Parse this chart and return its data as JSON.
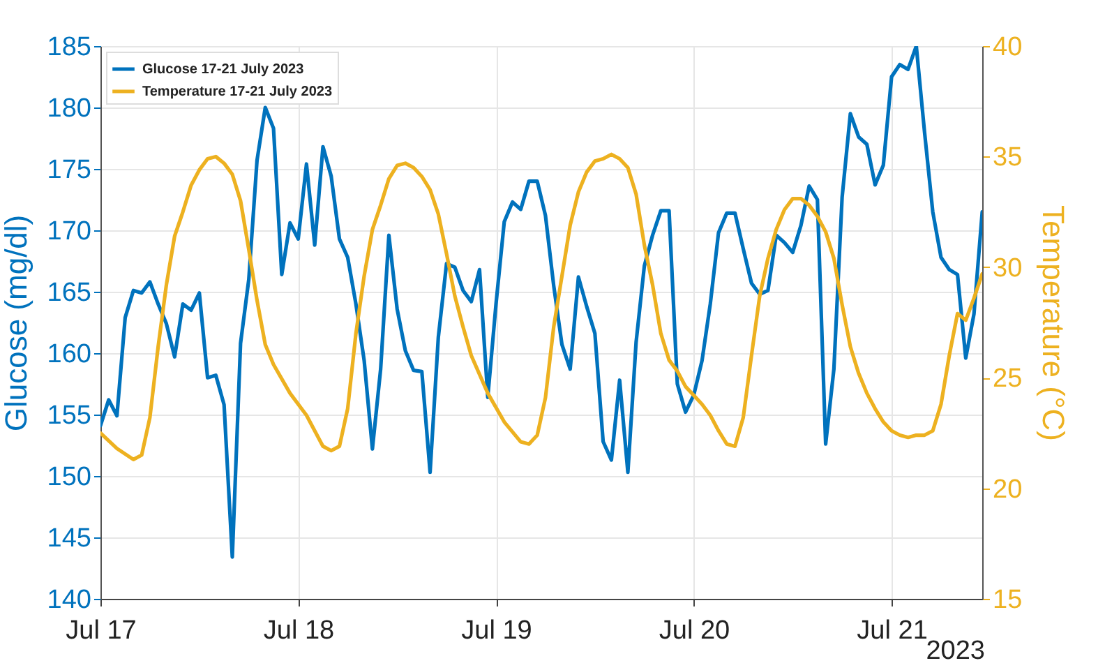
{
  "chart_data": {
    "type": "line",
    "xlabel": null,
    "ylabel": "Glucose (mg/dl)",
    "y2label": "Temperature (°C)",
    "x": [
      "2023-07-17T00:00",
      "2023-07-17T01:00",
      "2023-07-17T02:00",
      "2023-07-17T03:00",
      "2023-07-17T04:00",
      "2023-07-17T05:00",
      "2023-07-17T06:00",
      "2023-07-17T07:00",
      "2023-07-17T08:00",
      "2023-07-17T09:00",
      "2023-07-17T10:00",
      "2023-07-17T11:00",
      "2023-07-17T12:00",
      "2023-07-17T13:00",
      "2023-07-17T14:00",
      "2023-07-17T15:00",
      "2023-07-17T16:00",
      "2023-07-17T17:00",
      "2023-07-17T18:00",
      "2023-07-17T19:00",
      "2023-07-17T20:00",
      "2023-07-17T21:00",
      "2023-07-17T22:00",
      "2023-07-17T23:00",
      "2023-07-18T00:00",
      "2023-07-18T01:00",
      "2023-07-18T02:00",
      "2023-07-18T03:00",
      "2023-07-18T04:00",
      "2023-07-18T05:00",
      "2023-07-18T06:00",
      "2023-07-18T07:00",
      "2023-07-18T08:00",
      "2023-07-18T09:00",
      "2023-07-18T10:00",
      "2023-07-18T11:00",
      "2023-07-18T12:00",
      "2023-07-18T13:00",
      "2023-07-18T14:00",
      "2023-07-18T15:00",
      "2023-07-18T16:00",
      "2023-07-18T17:00",
      "2023-07-18T18:00",
      "2023-07-18T19:00",
      "2023-07-18T20:00",
      "2023-07-18T21:00",
      "2023-07-18T22:00",
      "2023-07-18T23:00",
      "2023-07-19T00:00",
      "2023-07-19T01:00",
      "2023-07-19T02:00",
      "2023-07-19T03:00",
      "2023-07-19T04:00",
      "2023-07-19T05:00",
      "2023-07-19T06:00",
      "2023-07-19T07:00",
      "2023-07-19T08:00",
      "2023-07-19T09:00",
      "2023-07-19T10:00",
      "2023-07-19T11:00",
      "2023-07-19T12:00",
      "2023-07-19T13:00",
      "2023-07-19T14:00",
      "2023-07-19T15:00",
      "2023-07-19T16:00",
      "2023-07-19T17:00",
      "2023-07-19T18:00",
      "2023-07-19T19:00",
      "2023-07-19T20:00",
      "2023-07-19T21:00",
      "2023-07-19T22:00",
      "2023-07-19T23:00",
      "2023-07-20T00:00",
      "2023-07-20T01:00",
      "2023-07-20T02:00",
      "2023-07-20T03:00",
      "2023-07-20T04:00",
      "2023-07-20T05:00",
      "2023-07-20T06:00",
      "2023-07-20T07:00",
      "2023-07-20T08:00",
      "2023-07-20T09:00",
      "2023-07-20T10:00",
      "2023-07-20T11:00",
      "2023-07-20T12:00",
      "2023-07-20T13:00",
      "2023-07-20T14:00",
      "2023-07-20T15:00",
      "2023-07-20T16:00",
      "2023-07-20T17:00",
      "2023-07-20T18:00",
      "2023-07-20T19:00",
      "2023-07-20T20:00",
      "2023-07-20T21:00",
      "2023-07-20T22:00",
      "2023-07-20T23:00",
      "2023-07-21T00:00",
      "2023-07-21T01:00",
      "2023-07-21T02:00",
      "2023-07-21T03:00",
      "2023-07-21T04:00",
      "2023-07-21T05:00",
      "2023-07-21T06:00",
      "2023-07-21T07:00",
      "2023-07-21T08:00",
      "2023-07-21T09:00",
      "2023-07-21T10:00",
      "2023-07-21T11:00"
    ],
    "series": [
      {
        "name": "Glucose 17-21 July 2023",
        "color": "#0072bd",
        "values": [
          154.1,
          156.2,
          154.9,
          162.9,
          165.1,
          164.9,
          165.8,
          164.0,
          162.4,
          159.7,
          164.0,
          163.5,
          164.9,
          158.0,
          158.2,
          155.8,
          143.4,
          160.8,
          166.0,
          175.7,
          180.0,
          178.3,
          166.4,
          170.6,
          169.3,
          175.4,
          168.8,
          176.8,
          174.4,
          169.3,
          167.8,
          164.0,
          159.4,
          152.2,
          158.7,
          169.6,
          163.6,
          160.2,
          158.6,
          158.5,
          150.3,
          161.3,
          167.3,
          167.0,
          165.1,
          164.2,
          166.8,
          156.4,
          164.0,
          170.7,
          172.3,
          171.7,
          174.0,
          174.0,
          171.2,
          165.5,
          160.7,
          158.7,
          166.2,
          163.8,
          161.6,
          152.8,
          151.3,
          157.8,
          150.3,
          160.9,
          167.1,
          169.6,
          171.6,
          171.6,
          157.5,
          155.2,
          156.6,
          159.4,
          164.0,
          169.8,
          171.4,
          171.4,
          168.5,
          165.7,
          164.8,
          165.1,
          169.6,
          169.0,
          168.2,
          170.4,
          173.6,
          172.5,
          152.6,
          158.7,
          172.7,
          179.5,
          177.6,
          177.0,
          173.7,
          175.3,
          182.5,
          183.5,
          183.1,
          185.0,
          178.0,
          171.5,
          167.8,
          166.8,
          166.4,
          159.6,
          163.2,
          171.5
        ]
      },
      {
        "name": "Temperature 17-21 July 2023",
        "color": "#edb120",
        "axis": "y2",
        "x": [
          "2023-07-17T00:00",
          "2023-07-17T02:00",
          "2023-07-17T04:00",
          "2023-07-17T05:00",
          "2023-07-17T06:00",
          "2023-07-17T07:00",
          "2023-07-17T08:00",
          "2023-07-17T09:00",
          "2023-07-17T10:00",
          "2023-07-17T11:00",
          "2023-07-17T12:00",
          "2023-07-17T13:00",
          "2023-07-17T14:00",
          "2023-07-17T15:00",
          "2023-07-17T16:00",
          "2023-07-17T17:00",
          "2023-07-17T18:00",
          "2023-07-17T19:00",
          "2023-07-17T20:00",
          "2023-07-17T21:00",
          "2023-07-17T23:00",
          "2023-07-18T01:00",
          "2023-07-18T03:00",
          "2023-07-18T04:00",
          "2023-07-18T05:00",
          "2023-07-18T06:00",
          "2023-07-18T07:00",
          "2023-07-18T08:00",
          "2023-07-18T09:00",
          "2023-07-18T10:00",
          "2023-07-18T11:00",
          "2023-07-18T12:00",
          "2023-07-18T13:00",
          "2023-07-18T14:00",
          "2023-07-18T15:00",
          "2023-07-18T16:00",
          "2023-07-18T17:00",
          "2023-07-18T18:00",
          "2023-07-18T19:00",
          "2023-07-18T20:00",
          "2023-07-18T21:00",
          "2023-07-18T23:00",
          "2023-07-19T01:00",
          "2023-07-19T03:00",
          "2023-07-19T04:00",
          "2023-07-19T05:00",
          "2023-07-19T06:00",
          "2023-07-19T07:00",
          "2023-07-19T08:00",
          "2023-07-19T09:00",
          "2023-07-19T10:00",
          "2023-07-19T11:00",
          "2023-07-19T12:00",
          "2023-07-19T13:00",
          "2023-07-19T14:00",
          "2023-07-19T15:00",
          "2023-07-19T16:00",
          "2023-07-19T17:00",
          "2023-07-19T18:00",
          "2023-07-19T19:00",
          "2023-07-19T20:00",
          "2023-07-19T21:00",
          "2023-07-19T22:00",
          "2023-07-19T23:00",
          "2023-07-20T00:00",
          "2023-07-20T01:00",
          "2023-07-20T02:00",
          "2023-07-20T03:00",
          "2023-07-20T04:00",
          "2023-07-20T05:00",
          "2023-07-20T06:00",
          "2023-07-20T07:00",
          "2023-07-20T08:00",
          "2023-07-20T09:00",
          "2023-07-20T10:00",
          "2023-07-20T11:00",
          "2023-07-20T12:00",
          "2023-07-20T13:00",
          "2023-07-20T14:00",
          "2023-07-20T15:00",
          "2023-07-20T16:00",
          "2023-07-20T17:00",
          "2023-07-20T18:00",
          "2023-07-20T19:00",
          "2023-07-20T20:00",
          "2023-07-20T21:00",
          "2023-07-20T22:00",
          "2023-07-20T23:00",
          "2023-07-21T00:00",
          "2023-07-21T01:00",
          "2023-07-21T02:00",
          "2023-07-21T03:00",
          "2023-07-21T04:00",
          "2023-07-21T05:00",
          "2023-07-21T06:00",
          "2023-07-21T07:00",
          "2023-07-21T08:00",
          "2023-07-21T09:00",
          "2023-07-21T10:00",
          "2023-07-21T11:00"
        ],
        "values": [
          22.5,
          21.8,
          21.3,
          21.5,
          23.2,
          26.4,
          29.2,
          31.4,
          32.5,
          33.7,
          34.4,
          34.9,
          35.0,
          34.7,
          34.2,
          33.0,
          30.8,
          28.5,
          26.5,
          25.6,
          24.3,
          23.3,
          21.9,
          21.7,
          21.9,
          23.6,
          27.0,
          29.6,
          31.7,
          32.8,
          34.0,
          34.6,
          34.7,
          34.5,
          34.1,
          33.5,
          32.4,
          30.6,
          28.7,
          27.3,
          26.0,
          24.3,
          23.0,
          22.1,
          22.0,
          22.4,
          24.1,
          27.3,
          29.6,
          31.9,
          33.4,
          34.3,
          34.8,
          34.9,
          35.1,
          34.9,
          34.5,
          33.3,
          31.0,
          29.2,
          27.0,
          25.8,
          25.3,
          24.6,
          24.2,
          23.8,
          23.3,
          22.6,
          22.0,
          21.9,
          23.2,
          26.0,
          28.7,
          30.4,
          31.7,
          32.6,
          33.1,
          33.1,
          32.8,
          32.3,
          31.6,
          30.4,
          28.3,
          26.4,
          25.2,
          24.3,
          23.6,
          23.0,
          22.6,
          22.4,
          22.3,
          22.4,
          22.4,
          22.6,
          23.8,
          26.0,
          27.9,
          27.6,
          28.6,
          29.7
        ]
      }
    ],
    "xlim": [
      "2023-07-17T00:00",
      "2023-07-21T11:00"
    ],
    "xticks": [
      {
        "value": "2023-07-17",
        "label": "Jul 17"
      },
      {
        "value": "2023-07-18",
        "label": "Jul 18"
      },
      {
        "value": "2023-07-19",
        "label": "Jul 19"
      },
      {
        "value": "2023-07-20",
        "label": "Jul 20"
      },
      {
        "value": "2023-07-21",
        "label": "Jul 21"
      }
    ],
    "ylim": [
      140,
      185
    ],
    "yticks": [
      140,
      145,
      150,
      155,
      160,
      165,
      170,
      175,
      180,
      185
    ],
    "y2lim": [
      15,
      40
    ],
    "y2ticks": [
      15,
      20,
      25,
      30,
      35,
      40
    ],
    "annotations": [
      "2023"
    ],
    "grid": true,
    "legend": "top left",
    "line_style": "solid",
    "marker": "none"
  }
}
